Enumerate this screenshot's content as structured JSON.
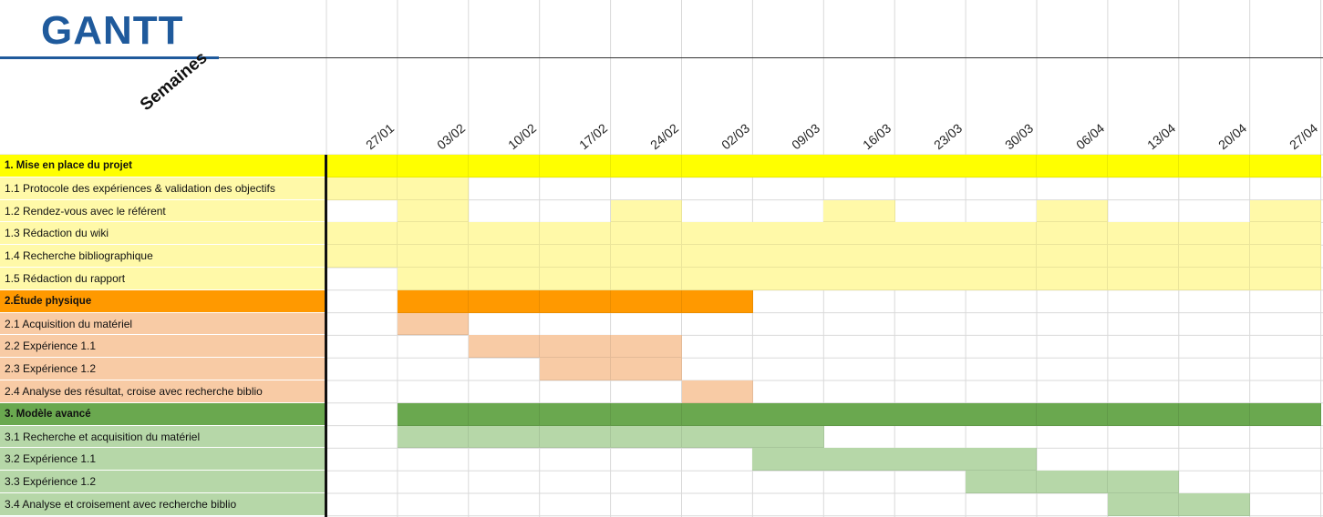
{
  "title": "GANTT",
  "axis_label": "Semaines",
  "colors": {
    "title": "#1f5a9c",
    "phase1_header": "#ffff00",
    "phase1_task": "#fff9a8",
    "phase2_header": "#ff9900",
    "phase2_task": "#f8cba5",
    "phase3_header": "#6aa84f",
    "phase3_task": "#b6d7a8",
    "grid": "#d9d9d9"
  },
  "chart_data": {
    "type": "table",
    "title": "GANTT",
    "xlabel": "Semaines",
    "weeks": [
      "27/01",
      "03/02",
      "10/02",
      "17/02",
      "24/02",
      "02/03",
      "09/03",
      "16/03",
      "23/03",
      "30/03",
      "06/04",
      "13/04",
      "20/04",
      "27/04"
    ],
    "rows": [
      {
        "label": "1. Mise en place du projet",
        "phase": 1,
        "header": true,
        "weeks": [
          0,
          1,
          2,
          3,
          4,
          5,
          6,
          7,
          8,
          9,
          10,
          11,
          12,
          13
        ]
      },
      {
        "label": "1.1 Protocole des expériences & validation des objectifs",
        "phase": 1,
        "header": false,
        "weeks": [
          0,
          1
        ]
      },
      {
        "label": "1.2 Rendez-vous avec le référent",
        "phase": 1,
        "header": false,
        "weeks": [
          1,
          4,
          7,
          10,
          13
        ]
      },
      {
        "label": "1.3 Rédaction du wiki",
        "phase": 1,
        "header": false,
        "weeks": [
          0,
          1,
          2,
          3,
          4,
          5,
          6,
          7,
          8,
          9,
          10,
          11,
          12,
          13
        ]
      },
      {
        "label": "1.4 Recherche bibliographique",
        "phase": 1,
        "header": false,
        "weeks": [
          0,
          1,
          2,
          3,
          4,
          5,
          6,
          7,
          8,
          9,
          10,
          11,
          12,
          13
        ]
      },
      {
        "label": "1.5 Rédaction du rapport",
        "phase": 1,
        "header": false,
        "weeks": [
          1,
          2,
          3,
          4,
          5,
          6,
          7,
          8,
          9,
          10,
          11,
          12,
          13
        ]
      },
      {
        "label": "2.Étude physique",
        "phase": 2,
        "header": true,
        "weeks": [
          1,
          2,
          3,
          4,
          5
        ]
      },
      {
        "label": "2.1 Acquisition du matériel",
        "phase": 2,
        "header": false,
        "weeks": [
          1
        ]
      },
      {
        "label": "2.2 Expérience 1.1",
        "phase": 2,
        "header": false,
        "weeks": [
          2,
          3,
          4
        ]
      },
      {
        "label": "2.3 Expérience 1.2",
        "phase": 2,
        "header": false,
        "weeks": [
          3,
          4
        ]
      },
      {
        "label": "2.4 Analyse des résultat, croise avec recherche biblio",
        "phase": 2,
        "header": false,
        "weeks": [
          5
        ]
      },
      {
        "label": "3. Modèle avancé",
        "phase": 3,
        "header": true,
        "weeks": [
          1,
          2,
          3,
          4,
          5,
          6,
          7,
          8,
          9,
          10,
          11,
          12,
          13
        ]
      },
      {
        "label": "3.1 Recherche et acquisition du matériel",
        "phase": 3,
        "header": false,
        "weeks": [
          1,
          2,
          3,
          4,
          5,
          6
        ]
      },
      {
        "label": "3.2 Expérience 1.1",
        "phase": 3,
        "header": false,
        "weeks": [
          6,
          7,
          8,
          9
        ]
      },
      {
        "label": "3.3 Expérience 1.2",
        "phase": 3,
        "header": false,
        "weeks": [
          9,
          10,
          11
        ]
      },
      {
        "label": "3.4 Analyse et croisement avec recherche biblio",
        "phase": 3,
        "header": false,
        "weeks": [
          11,
          12
        ]
      }
    ]
  }
}
